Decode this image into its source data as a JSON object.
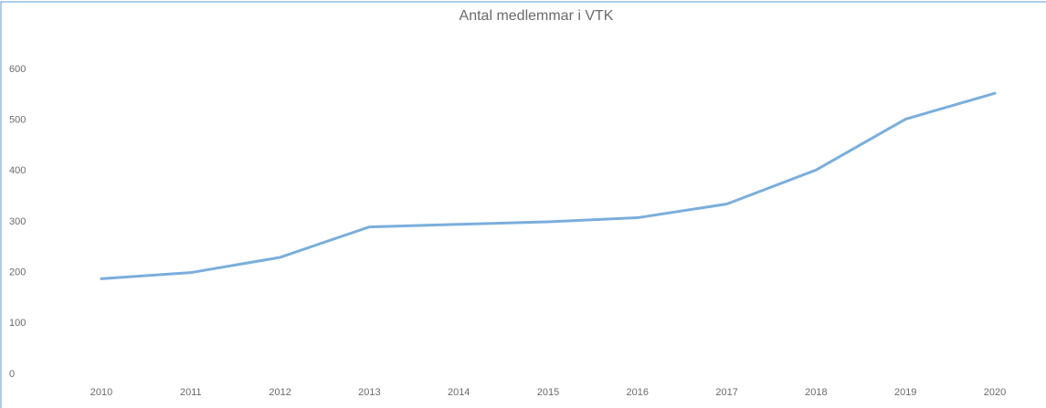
{
  "chart_data": {
    "type": "line",
    "title": "Antal medlemmar i VTK",
    "categories": [
      "2010",
      "2011",
      "2012",
      "2013",
      "2014",
      "2015",
      "2016",
      "2017",
      "2018",
      "2019",
      "2020"
    ],
    "series": [
      {
        "name": "Antal medlemmar",
        "color": "#7aaedc",
        "values": [
          188,
          200,
          230,
          290,
          295,
          300,
          308,
          335,
          402,
          502,
          553
        ]
      }
    ],
    "ylim": [
      0,
      600
    ],
    "yticks": [
      0,
      100,
      200,
      300,
      400,
      500,
      600
    ],
    "grid": false
  }
}
